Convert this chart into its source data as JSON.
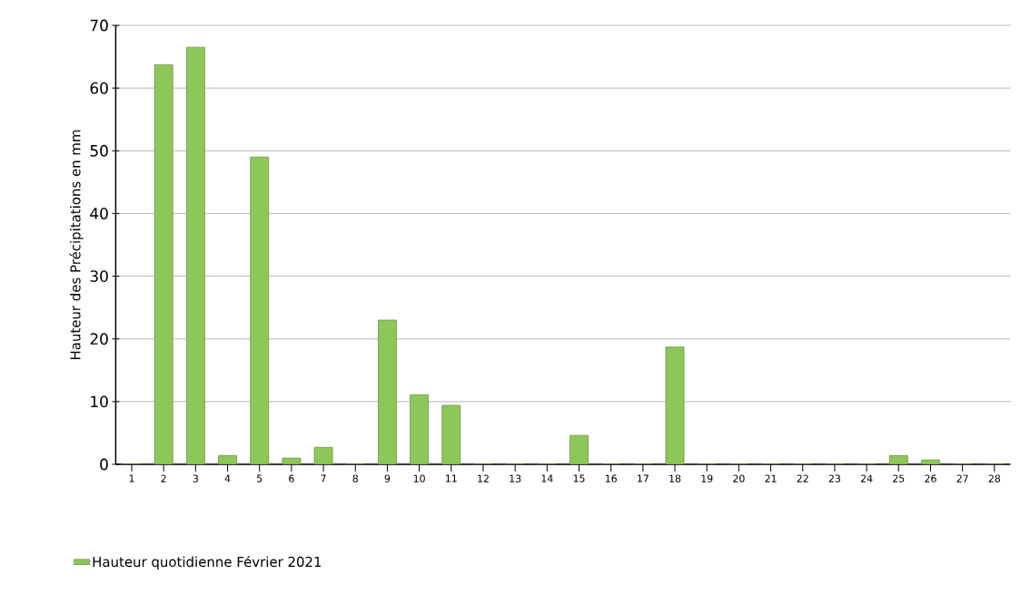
{
  "chart_data": {
    "type": "bar",
    "ylabel": "Hauteur des Précipitations en mm",
    "categories": [
      "1",
      "2",
      "3",
      "4",
      "5",
      "6",
      "7",
      "8",
      "9",
      "10",
      "11",
      "12",
      "13",
      "14",
      "15",
      "16",
      "17",
      "18",
      "19",
      "20",
      "21",
      "22",
      "23",
      "24",
      "25",
      "26",
      "27",
      "28"
    ],
    "series": [
      {
        "name": "Hauteur quotidienne Février 2021",
        "color": "#8fc65a",
        "values": [
          0,
          63.7,
          66.5,
          1.4,
          49,
          1.0,
          2.7,
          0,
          23,
          11.1,
          9.4,
          0,
          0,
          0,
          4.6,
          0,
          0,
          18.7,
          0,
          0,
          0,
          0,
          0,
          0,
          1.4,
          0.7,
          0,
          0
        ]
      }
    ],
    "ylim": [
      0,
      70
    ],
    "yticks": [
      0,
      10,
      20,
      30,
      40,
      50,
      60,
      70
    ],
    "grid": "y",
    "legend": "bottom left"
  }
}
